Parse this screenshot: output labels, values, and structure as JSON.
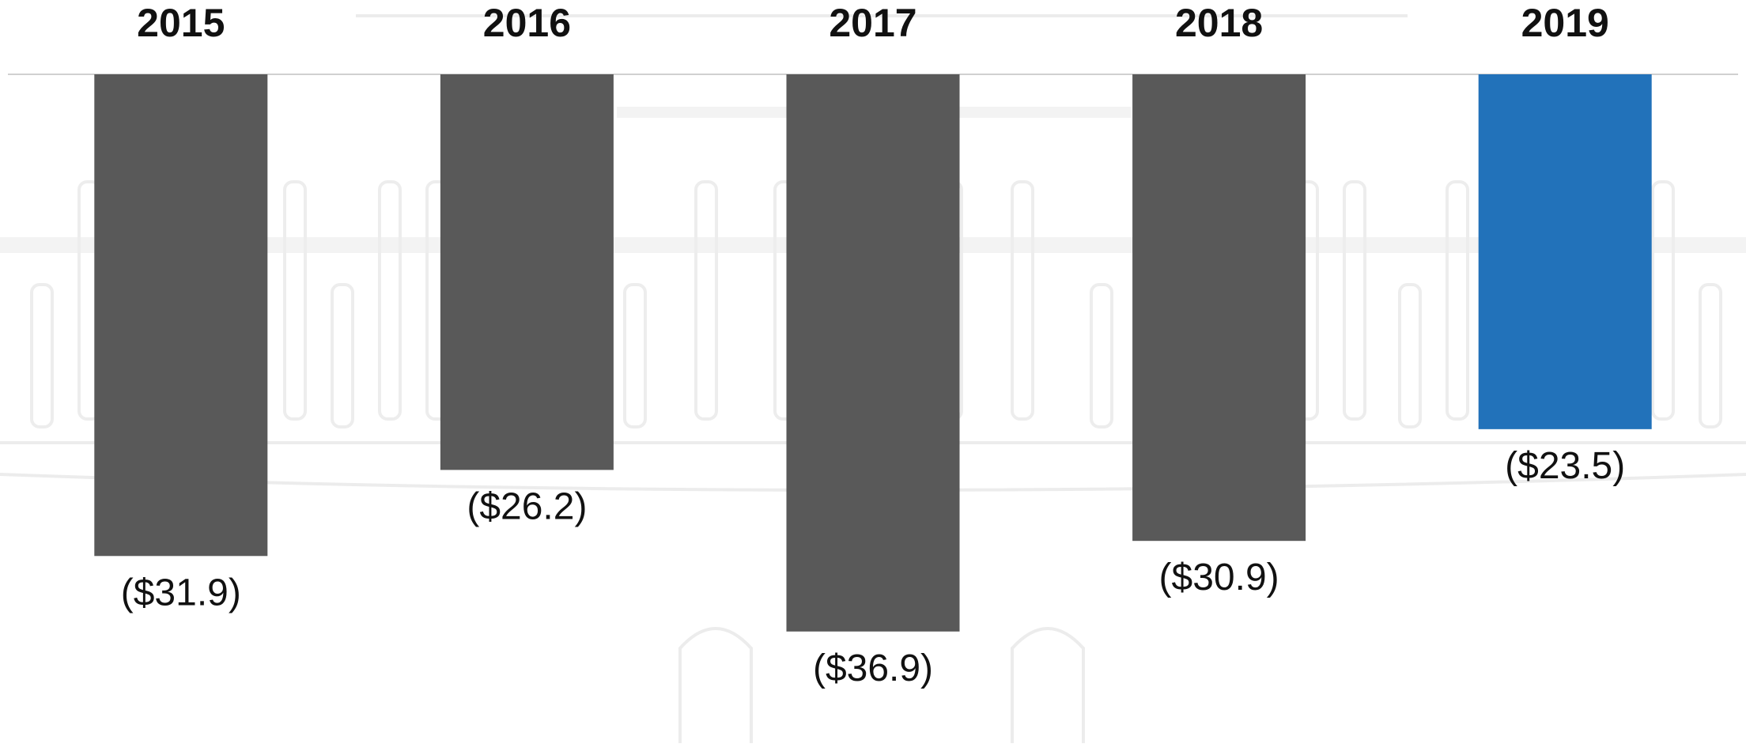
{
  "chart_data": {
    "type": "bar",
    "categories": [
      "2015",
      "2016",
      "2017",
      "2018",
      "2019"
    ],
    "values": [
      -31.9,
      -26.2,
      -36.9,
      -30.9,
      -23.5
    ],
    "value_labels": [
      "($31.9)",
      "($26.2)",
      "($36.9)",
      "($30.9)",
      "($23.5)"
    ],
    "title": "",
    "xlabel": "",
    "ylabel": "",
    "ylim": [
      -40,
      0
    ],
    "grid": false,
    "legend": "none",
    "axis_position": "top",
    "colors": {
      "default_bar": "#595959",
      "highlight_bar": "#2272BA",
      "highlight_category": "2019"
    }
  }
}
